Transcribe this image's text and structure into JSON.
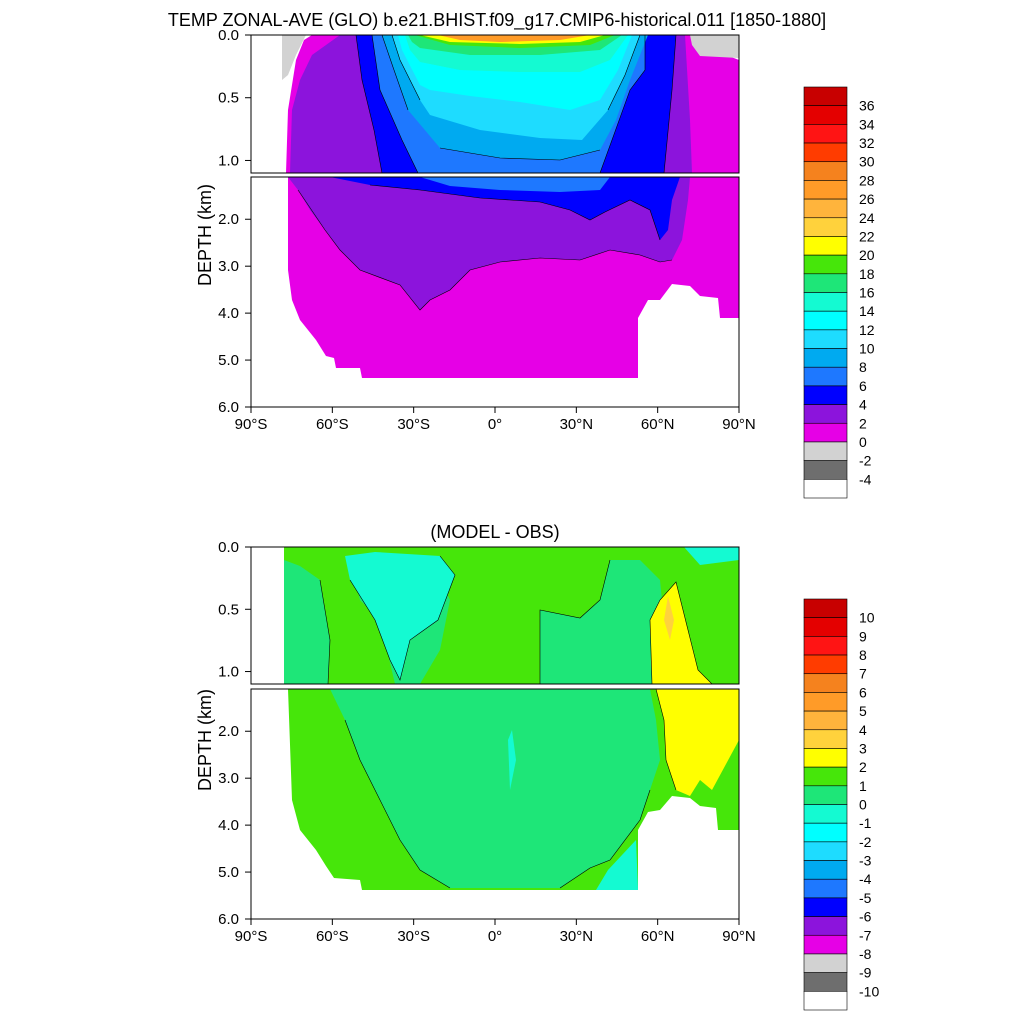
{
  "chart_data": [
    {
      "type": "heatmap",
      "title": "TEMP ZONAL-AVE (GLO) b.e21.BHIST.f09_g17.CMIP6-historical.011 [1850-1880]",
      "xlabel": "",
      "ylabel": "DEPTH (km)",
      "xlim": [
        -90,
        90
      ],
      "ylim": [
        6.0,
        0.0
      ],
      "x_ticks": [
        -90,
        -60,
        -30,
        0,
        30,
        60,
        90
      ],
      "x_tick_labels": [
        "90°S",
        "60°S",
        "30°S",
        "0°",
        "30°N",
        "60°N",
        "90°N"
      ],
      "y_ticks_upper": [
        0.0,
        0.5,
        1.0
      ],
      "y_tick_labels_upper": [
        "0.0",
        "0.5",
        "1.0"
      ],
      "y_ticks_lower": [
        2.0,
        3.0,
        4.0,
        5.0,
        6.0
      ],
      "y_tick_labels_lower": [
        "2.0",
        "3.0",
        "4.0",
        "5.0",
        "6.0"
      ],
      "depth_break_km": 1.1,
      "colorbar": {
        "levels": [
          "36",
          "34",
          "32",
          "30",
          "28",
          "26",
          "24",
          "22",
          "20",
          "18",
          "16",
          "14",
          "12",
          "10",
          "8",
          "6",
          "4",
          "2",
          "0",
          "-2",
          "-4"
        ],
        "colors": [
          "#c80000",
          "#e40000",
          "#ff1414",
          "#ff3c00",
          "#f5821e",
          "#ff9b28",
          "#ffb43c",
          "#ffd23c",
          "#ffff00",
          "#46e60a",
          "#1ee678",
          "#14fad2",
          "#00ffff",
          "#1edcff",
          "#00aaf0",
          "#1e78ff",
          "#0000ff",
          "#8c14dc",
          "#e600e6",
          "#d2d2d2",
          "#6e6e6e",
          "#ffffff"
        ]
      },
      "field_summary": {
        "surface_tropical_max_C": 28,
        "deep_ocean_C": [
          0,
          2
        ],
        "polar_surface_C": [
          -2,
          0
        ]
      }
    },
    {
      "type": "heatmap",
      "title": "(MODEL - OBS)",
      "xlabel": "",
      "ylabel": "DEPTH (km)",
      "xlim": [
        -90,
        90
      ],
      "ylim": [
        6.0,
        0.0
      ],
      "x_ticks": [
        -90,
        -60,
        -30,
        0,
        30,
        60,
        90
      ],
      "x_tick_labels": [
        "90°S",
        "60°S",
        "30°S",
        "0°",
        "30°N",
        "60°N",
        "90°N"
      ],
      "y_ticks_upper": [
        0.0,
        0.5,
        1.0
      ],
      "y_tick_labels_upper": [
        "0.0",
        "0.5",
        "1.0"
      ],
      "y_ticks_lower": [
        2.0,
        3.0,
        4.0,
        5.0,
        6.0
      ],
      "y_tick_labels_lower": [
        "2.0",
        "3.0",
        "4.0",
        "5.0",
        "6.0"
      ],
      "depth_break_km": 1.1,
      "colorbar": {
        "levels": [
          "10",
          "9",
          "8",
          "7",
          "6",
          "5",
          "4",
          "3",
          "2",
          "1",
          "0",
          "-1",
          "-2",
          "-3",
          "-4",
          "-5",
          "-6",
          "-7",
          "-8",
          "-9",
          "-10"
        ],
        "colors": [
          "#c80000",
          "#e40000",
          "#ff1414",
          "#ff3c00",
          "#f5821e",
          "#ff9b28",
          "#ffb43c",
          "#ffd23c",
          "#ffff00",
          "#46e60a",
          "#1ee678",
          "#14fad2",
          "#00ffff",
          "#1edcff",
          "#00aaf0",
          "#1e78ff",
          "#0000ff",
          "#8c14dc",
          "#e600e6",
          "#d2d2d2",
          "#6e6e6e",
          "#ffffff"
        ]
      },
      "field_summary": {
        "dominant_bias_C": [
          0,
          1
        ],
        "arctic_bias_C": [
          2,
          3
        ],
        "southern_ocean_bias_C": [
          -1,
          0
        ]
      }
    }
  ]
}
